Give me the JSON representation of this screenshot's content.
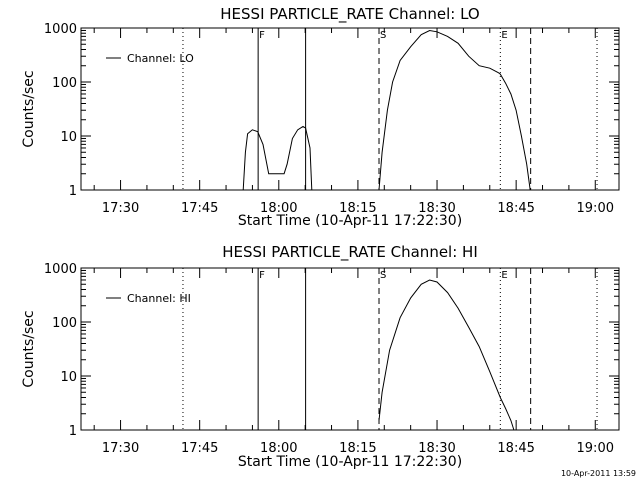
{
  "footer": {
    "stamp": "10-Apr-2011 13:59"
  },
  "chart_data": [
    {
      "type": "line",
      "title": "HESSI PARTICLE_RATE Channel: LO",
      "xlabel": "Start Time (10-Apr-11 17:22:30)",
      "ylabel": "Counts/sec",
      "yscale": "log",
      "ylim": [
        1,
        1000
      ],
      "xlim_minutes_after_start": [
        0,
        102
      ],
      "x_ticks": [
        "17:30",
        "17:45",
        "18:00",
        "18:15",
        "18:30",
        "18:45",
        "19:00"
      ],
      "y_ticks": [
        "1",
        "10",
        "100",
        "1000"
      ],
      "legend": {
        "label": "Channel: LO",
        "placement": "top-left"
      },
      "markers": [
        {
          "time": "17:41:50",
          "style": "dotted",
          "label": ""
        },
        {
          "time": "17:56:05",
          "style": "solid",
          "label": "F"
        },
        {
          "time": "18:05:05",
          "style": "solid",
          "label": ""
        },
        {
          "time": "18:19:00",
          "style": "dashed",
          "label": "S"
        },
        {
          "time": "18:42:00",
          "style": "dotted",
          "label": "E"
        },
        {
          "time": "18:47:45",
          "style": "dashed",
          "label": ""
        },
        {
          "time": "19:00:20",
          "style": "dotted",
          "label": ""
        }
      ],
      "series": [
        {
          "name": "Channel: LO",
          "segments": [
            [
              [
                "17:53:15",
                1
              ],
              [
                "17:53:40",
                5
              ],
              [
                "17:54:05",
                11
              ],
              [
                "17:55:00",
                13
              ],
              [
                "17:56:00",
                12
              ],
              [
                "17:57:00",
                7
              ],
              [
                "17:58:05",
                2
              ],
              [
                "18:01:00",
                2
              ],
              [
                "18:01:35",
                3
              ],
              [
                "18:02:35",
                9
              ],
              [
                "18:03:35",
                13
              ],
              [
                "18:04:35",
                15
              ],
              [
                "18:05:05",
                14
              ],
              [
                "18:05:55",
                6
              ],
              [
                "18:06:15",
                1
              ]
            ],
            [
              [
                "18:19:00",
                1
              ],
              [
                "18:19:35",
                5
              ],
              [
                "18:20:35",
                30
              ],
              [
                "18:21:35",
                100
              ],
              [
                "18:23:00",
                250
              ],
              [
                "18:25:00",
                450
              ],
              [
                "18:27:00",
                750
              ],
              [
                "18:28:35",
                900
              ],
              [
                "18:30:00",
                850
              ],
              [
                "18:32:00",
                700
              ],
              [
                "18:34:00",
                520
              ],
              [
                "18:36:00",
                300
              ],
              [
                "18:38:00",
                200
              ],
              [
                "18:40:00",
                180
              ],
              [
                "18:41:35",
                150
              ],
              [
                "18:42:00",
                140
              ],
              [
                "18:43:00",
                95
              ],
              [
                "18:44:00",
                60
              ],
              [
                "18:45:00",
                30
              ],
              [
                "18:46:00",
                10
              ],
              [
                "18:47:00",
                3
              ],
              [
                "18:47:40",
                1
              ]
            ]
          ]
        }
      ]
    },
    {
      "type": "line",
      "title": "HESSI PARTICLE_RATE Channel: HI",
      "xlabel": "Start Time (10-Apr-11 17:22:30)",
      "ylabel": "Counts/sec",
      "yscale": "log",
      "ylim": [
        1,
        1000
      ],
      "xlim_minutes_after_start": [
        0,
        102
      ],
      "x_ticks": [
        "17:30",
        "17:45",
        "18:00",
        "18:15",
        "18:30",
        "18:45",
        "19:00"
      ],
      "y_ticks": [
        "1",
        "10",
        "100",
        "1000"
      ],
      "legend": {
        "label": "Channel: HI",
        "placement": "top-left"
      },
      "markers": [
        {
          "time": "17:41:50",
          "style": "dotted",
          "label": ""
        },
        {
          "time": "17:56:05",
          "style": "solid",
          "label": "F"
        },
        {
          "time": "18:05:05",
          "style": "solid",
          "label": ""
        },
        {
          "time": "18:19:00",
          "style": "dashed",
          "label": "S"
        },
        {
          "time": "18:42:00",
          "style": "dotted",
          "label": "E"
        },
        {
          "time": "18:47:45",
          "style": "dashed",
          "label": ""
        },
        {
          "time": "19:00:20",
          "style": "dotted",
          "label": ""
        }
      ],
      "series": [
        {
          "name": "Channel: HI",
          "segments": [
            [
              [
                "18:19:00",
                1.5
              ],
              [
                "18:19:35",
                5
              ],
              [
                "18:21:00",
                30
              ],
              [
                "18:23:00",
                120
              ],
              [
                "18:25:00",
                280
              ],
              [
                "18:27:00",
                500
              ],
              [
                "18:28:35",
                600
              ],
              [
                "18:30:00",
                550
              ],
              [
                "18:32:00",
                350
              ],
              [
                "18:34:00",
                180
              ],
              [
                "18:36:00",
                80
              ],
              [
                "18:38:00",
                35
              ],
              [
                "18:40:00",
                12
              ],
              [
                "18:42:00",
                4
              ],
              [
                "18:43:00",
                2.5
              ],
              [
                "18:44:00",
                1.5
              ],
              [
                "18:44:35",
                1
              ]
            ]
          ]
        }
      ]
    }
  ]
}
